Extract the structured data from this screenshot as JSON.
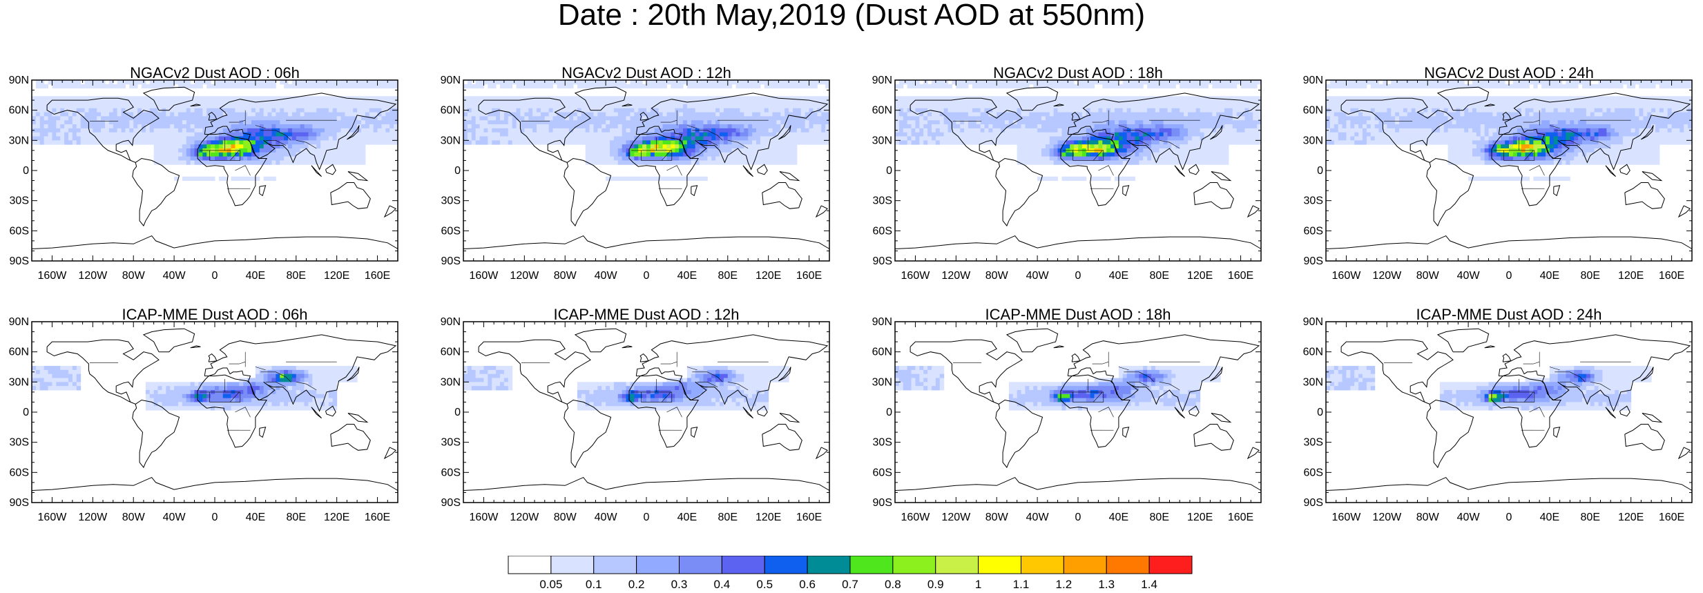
{
  "title": "Date : 20th May,2019 (Dust AOD at 550nm)",
  "lat_labels": [
    "90N",
    "60N",
    "30N",
    "0",
    "30S",
    "60S",
    "90S"
  ],
  "lon_labels": [
    "160W",
    "120W",
    "80W",
    "40W",
    "0",
    "40E",
    "80E",
    "120E",
    "160E"
  ],
  "panels": [
    {
      "title": "NGACv2 Dust AOD : 06h",
      "model": "NGACv2"
    },
    {
      "title": "NGACv2 Dust AOD : 12h",
      "model": "NGACv2"
    },
    {
      "title": "NGACv2 Dust AOD : 18h",
      "model": "NGACv2"
    },
    {
      "title": "NGACv2 Dust AOD : 24h",
      "model": "NGACv2"
    },
    {
      "title": "ICAP-MME Dust AOD : 06h",
      "model": "ICAP-MME"
    },
    {
      "title": "ICAP-MME Dust AOD : 12h",
      "model": "ICAP-MME"
    },
    {
      "title": "ICAP-MME Dust AOD : 18h",
      "model": "ICAP-MME"
    },
    {
      "title": "ICAP-MME Dust AOD : 24h",
      "model": "ICAP-MME"
    }
  ],
  "colorbar": {
    "labels": [
      "0.05",
      "0.1",
      "0.2",
      "0.3",
      "0.4",
      "0.5",
      "0.6",
      "0.7",
      "0.8",
      "0.9",
      "1",
      "1.1",
      "1.2",
      "1.3",
      "1.4"
    ],
    "colors": [
      "#ffffff",
      "#d9e3ff",
      "#b6c8ff",
      "#92aaff",
      "#7a8cf5",
      "#5c63f0",
      "#1060f0",
      "#008c96",
      "#50e61e",
      "#8cf01e",
      "#c8f046",
      "#ffff00",
      "#ffc800",
      "#ffa000",
      "#ff7800",
      "#ff1e1e"
    ]
  }
}
